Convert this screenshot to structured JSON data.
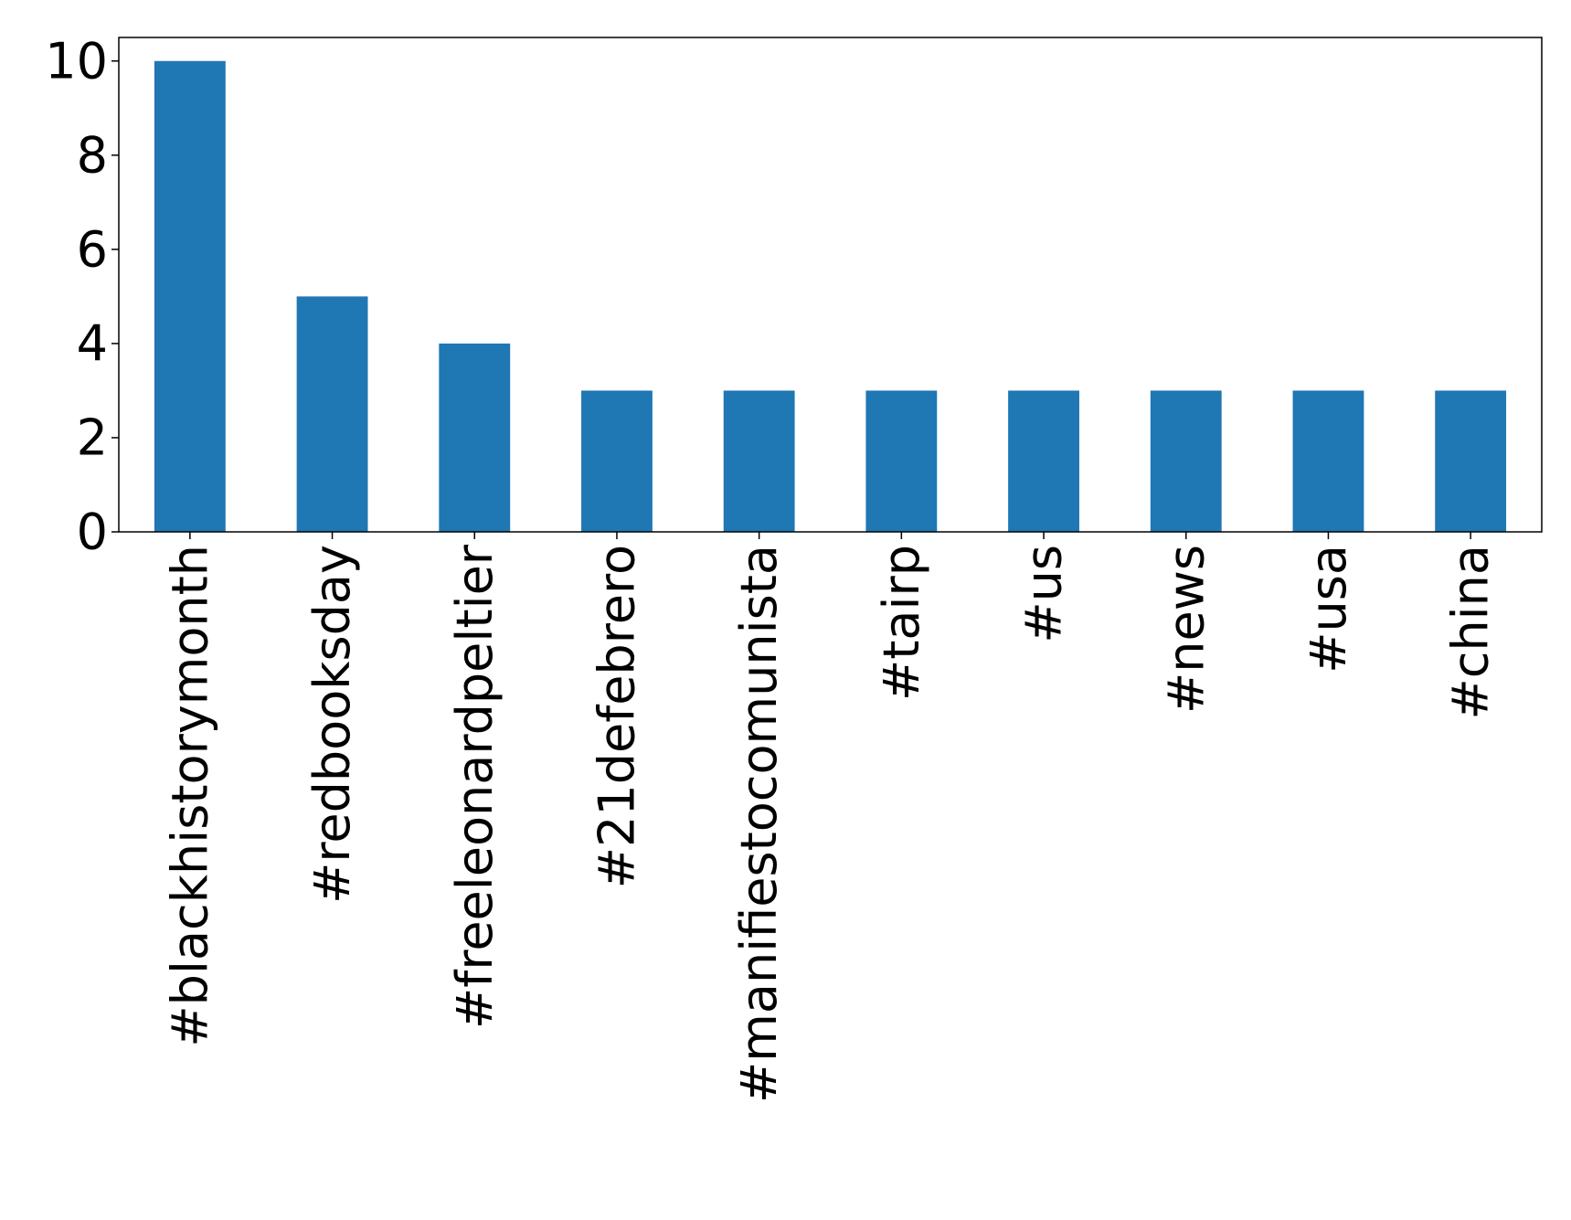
{
  "chart_data": {
    "type": "bar",
    "categories": [
      "#blackhistorymonth",
      "#redbooksday",
      "#freeleonardpeltier",
      "#21defebrero",
      "#manifiestocomunista",
      "#tairp",
      "#us",
      "#news",
      "#usa",
      "#china"
    ],
    "values": [
      10,
      5,
      4,
      3,
      3,
      3,
      3,
      3,
      3,
      3
    ],
    "color": "#1f77b4",
    "ylim": [
      0,
      10.5
    ],
    "yticks": [
      0,
      2,
      4,
      6,
      8,
      10
    ],
    "grid": false
  }
}
